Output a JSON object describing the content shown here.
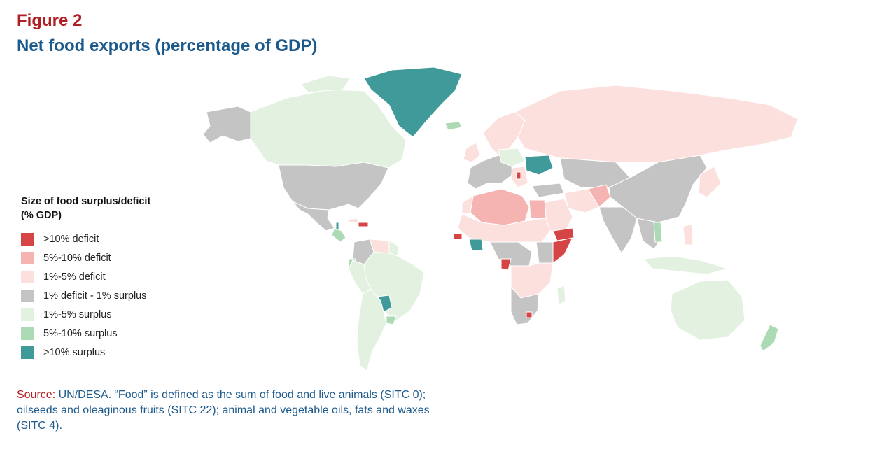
{
  "figure": {
    "label": "Figure 2",
    "title": "Net food exports (percentage of GDP)"
  },
  "legend": {
    "title_line1": "Size of food surplus/deficit",
    "title_line2": "(% GDP)",
    "items": [
      {
        "label": ">10% deficit",
        "color": "#d64545"
      },
      {
        "label": "5%-10% deficit",
        "color": "#f5b3b1"
      },
      {
        "label": "1%-5% deficit",
        "color": "#fce0de"
      },
      {
        "label": "1% deficit - 1% surplus",
        "color": "#c4c4c4"
      },
      {
        "label": "1%-5% surplus",
        "color": "#e3f1e0"
      },
      {
        "label": "5%-10% surplus",
        "color": "#abdab4"
      },
      {
        "label": ">10% surplus",
        "color": "#3f9a99"
      }
    ]
  },
  "source": {
    "label": "Source:",
    "text": " UN/DESA. “Food” is defined as the sum of food and live animals (SITC 0); oilseeds and oleaginous fruits (SITC 22); animal and vegetable oils, fats and waxes (SITC 4)."
  },
  "colors": {
    "deficit_gt10": "#d64545",
    "deficit_5_10": "#f5b3b1",
    "deficit_1_5": "#fce0de",
    "neutral": "#c4c4c4",
    "surplus_1_5": "#e3f1e0",
    "surplus_5_10": "#abdab4",
    "surplus_gt10": "#3f9a99",
    "title_red": "#b01f24",
    "title_blue": "#1d5a8c"
  }
}
